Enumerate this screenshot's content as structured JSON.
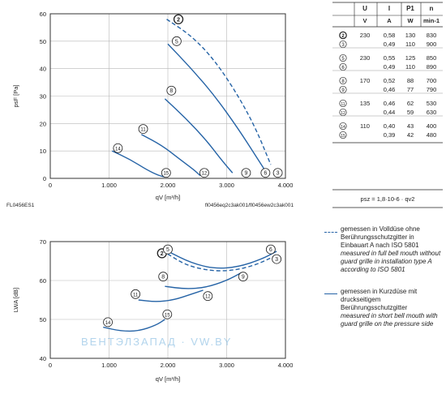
{
  "meta": {
    "left_code": "FL0456ES1",
    "right_code": "fl0456eq2c3ak001/fl0456ew2c3ak001"
  },
  "table": {
    "columns": [
      "",
      "U",
      "I",
      "P1",
      "n"
    ],
    "units": [
      "",
      "V",
      "A",
      "W",
      "min-1"
    ],
    "rows": [
      {
        "curve": "2",
        "U": "230",
        "I": "0,58",
        "P": "130",
        "n": "830"
      },
      {
        "curve": "3",
        "U": "",
        "I": "0,49",
        "P": "110",
        "n": "900"
      },
      {
        "curve": "5",
        "U": "230",
        "I": "0,55",
        "P": "125",
        "n": "850"
      },
      {
        "curve": "6",
        "U": "",
        "I": "0,49",
        "P": "110",
        "n": "890"
      },
      {
        "curve": "8",
        "U": "170",
        "I": "0,52",
        "P": "88",
        "n": "700"
      },
      {
        "curve": "9",
        "U": "",
        "I": "0,46",
        "P": "77",
        "n": "790"
      },
      {
        "curve": "11",
        "U": "135",
        "I": "0,46",
        "P": "62",
        "n": "530"
      },
      {
        "curve": "12",
        "U": "",
        "I": "0,44",
        "P": "59",
        "n": "630"
      },
      {
        "curve": "14",
        "U": "110",
        "I": "0,40",
        "P": "43",
        "n": "400"
      },
      {
        "curve": "15",
        "U": "",
        "I": "0,39",
        "P": "42",
        "n": "480"
      }
    ]
  },
  "formula": "psz = 1,8·10-6 · qv2",
  "legend": {
    "dashed": {
      "de": "gemessen in Volldüse ohne Berührungsschutzgitter in Einbauart A nach ISO 5801",
      "en": "measured in full bell mouth without guard grille in installation type A according to ISO 5801"
    },
    "solid": {
      "de": "gemessen in Kurzdüse mit druckseitigem Berührungsschutzgitter",
      "en": "measured in short bell mouth with guard grille on the pressure side"
    }
  },
  "watermark": "ВЕНТЭЛЗАПАД · VW.BY",
  "colors": {
    "curve": "#2563a6",
    "grid": "#b8b8b8",
    "frame": "#333333"
  },
  "chart_data": [
    {
      "type": "line",
      "title": "",
      "xlabel": "qV [m³/h]",
      "ylabel": "psF [Pa]",
      "xlim": [
        0,
        4000
      ],
      "ylim": [
        0,
        60
      ],
      "xticks": [
        "0",
        "1.000",
        "2.000",
        "3.000",
        "4.000"
      ],
      "yticks": [
        "0",
        "10",
        "20",
        "30",
        "40",
        "50",
        "60"
      ],
      "grid": true,
      "series": [
        {
          "name": "2",
          "style": "dashed",
          "x": [
            1980,
            2400,
            2800,
            3200,
            3500,
            3750
          ],
          "y": [
            58,
            52,
            43,
            30,
            18,
            5
          ]
        },
        {
          "name": "3",
          "style": "dashed",
          "points_only": true,
          "x": [
            3780
          ],
          "y": [
            2
          ]
        },
        {
          "name": "5",
          "style": "solid",
          "x": [
            2000,
            2400,
            2800,
            3200,
            3500,
            3650
          ],
          "y": [
            49,
            40,
            30,
            18,
            8,
            3
          ]
        },
        {
          "name": "6",
          "style": "solid",
          "points_only": true,
          "x": [
            3620
          ],
          "y": [
            2
          ]
        },
        {
          "name": "8",
          "style": "solid",
          "x": [
            1950,
            2300,
            2650,
            2900,
            3100
          ],
          "y": [
            29,
            22,
            14,
            7,
            2
          ]
        },
        {
          "name": "9",
          "style": "solid",
          "points_only": true,
          "x": [
            3080
          ],
          "y": [
            2
          ]
        },
        {
          "name": "11",
          "style": "solid",
          "x": [
            1550,
            1900,
            2200,
            2450,
            2550
          ],
          "y": [
            16,
            12,
            7,
            3,
            1
          ]
        },
        {
          "name": "12",
          "style": "solid",
          "points_only": true,
          "x": [
            2550
          ],
          "y": [
            2
          ]
        },
        {
          "name": "14",
          "style": "solid",
          "x": [
            1050,
            1350,
            1650,
            1850,
            1950
          ],
          "y": [
            10,
            7,
            3,
            1,
            0.5
          ]
        },
        {
          "name": "15",
          "style": "solid",
          "points_only": true,
          "x": [
            1950
          ],
          "y": [
            2
          ]
        }
      ],
      "labels": [
        {
          "text": "2",
          "x": 2180,
          "y": 58
        },
        {
          "text": "5",
          "x": 2150,
          "y": 50
        },
        {
          "text": "8",
          "x": 2060,
          "y": 32
        },
        {
          "text": "11",
          "x": 1580,
          "y": 18
        },
        {
          "text": "14",
          "x": 1150,
          "y": 11
        },
        {
          "text": "15",
          "x": 1970,
          "y": 2
        },
        {
          "text": "12",
          "x": 2620,
          "y": 2
        },
        {
          "text": "9",
          "x": 3330,
          "y": 2
        },
        {
          "text": "6",
          "x": 3660,
          "y": 2
        },
        {
          "text": "3",
          "x": 3870,
          "y": 2
        }
      ]
    },
    {
      "type": "line",
      "title": "",
      "xlabel": "qV [m³/h]",
      "ylabel": "LWA [dB]",
      "xlim": [
        0,
        4000
      ],
      "ylim": [
        40,
        70
      ],
      "xticks": [
        "0",
        "1.000",
        "2.000",
        "3.000",
        "4.000"
      ],
      "yticks": [
        "40",
        "50",
        "60",
        "70"
      ],
      "grid": true,
      "series": [
        {
          "name": "2/3",
          "style": "dashed",
          "x": [
            2000,
            2300,
            2700,
            3100,
            3500,
            3850
          ],
          "y": [
            66.8,
            64,
            62.5,
            62.5,
            64,
            66.5
          ]
        },
        {
          "name": "5/6",
          "style": "solid",
          "x": [
            2000,
            2400,
            2800,
            3200,
            3600,
            3850
          ],
          "y": [
            67.5,
            64.5,
            63,
            63.5,
            65.5,
            67.5
          ]
        },
        {
          "name": "8/9",
          "style": "solid",
          "x": [
            1950,
            2300,
            2650,
            3000,
            3250
          ],
          "y": [
            58.5,
            57.8,
            58.2,
            60,
            62
          ]
        },
        {
          "name": "11/12",
          "style": "solid",
          "x": [
            1500,
            1800,
            2100,
            2400,
            2600
          ],
          "y": [
            55,
            54.5,
            55,
            56.5,
            57.5
          ]
        },
        {
          "name": "14/15",
          "style": "solid",
          "x": [
            900,
            1200,
            1500,
            1800,
            1950
          ],
          "y": [
            48,
            47,
            47,
            48.5,
            50
          ]
        }
      ],
      "labels": [
        {
          "text": "2",
          "x": 1900,
          "y": 67
        },
        {
          "text": "5",
          "x": 2000,
          "y": 68
        },
        {
          "text": "6",
          "x": 3750,
          "y": 68
        },
        {
          "text": "3",
          "x": 3850,
          "y": 65.5
        },
        {
          "text": "8",
          "x": 1920,
          "y": 61
        },
        {
          "text": "9",
          "x": 3280,
          "y": 61
        },
        {
          "text": "11",
          "x": 1450,
          "y": 56.5
        },
        {
          "text": "12",
          "x": 2680,
          "y": 56
        },
        {
          "text": "14",
          "x": 980,
          "y": 49.3
        },
        {
          "text": "15",
          "x": 1990,
          "y": 51.3
        }
      ]
    }
  ]
}
